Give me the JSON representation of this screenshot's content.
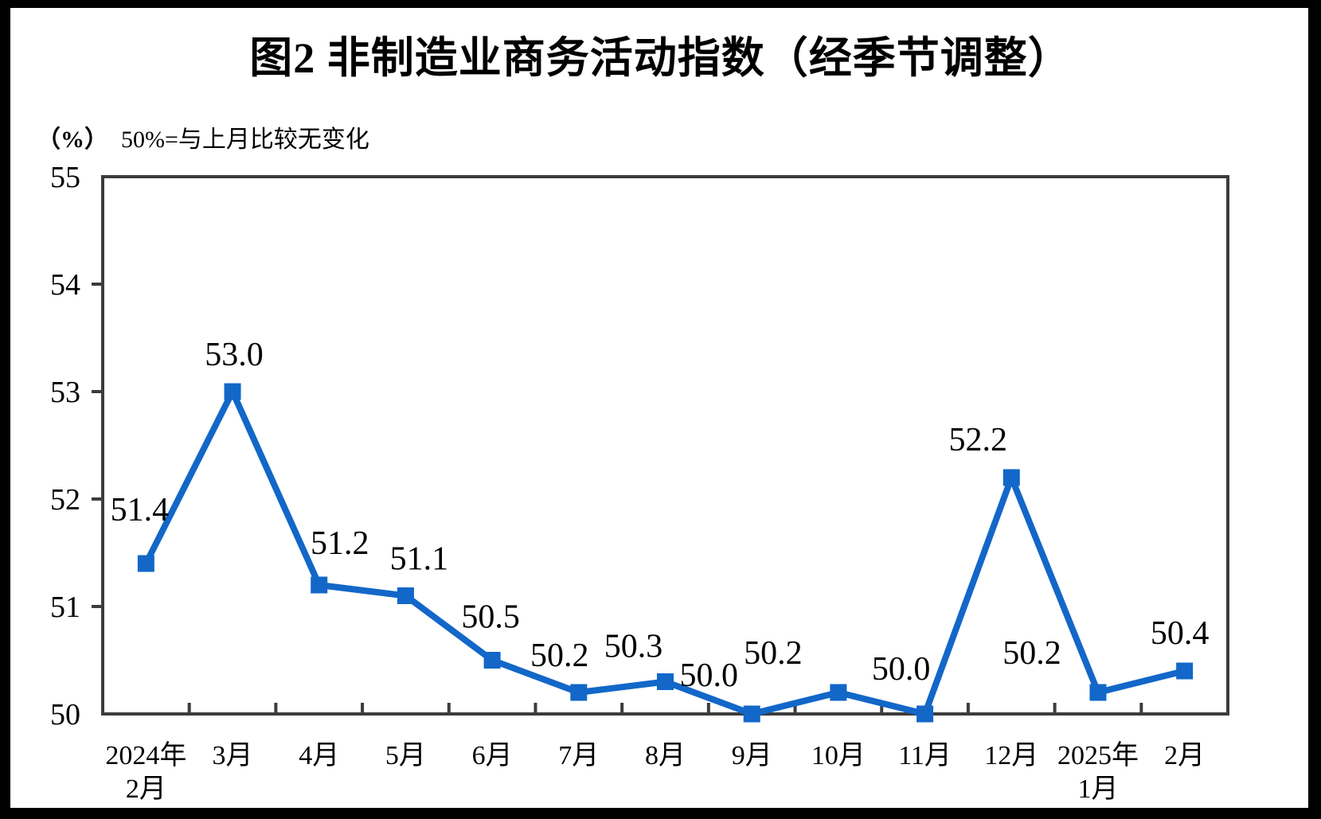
{
  "title": "图2 非制造业商务活动指数（经季节调整）",
  "unit_label": "（%）",
  "subtitle": "50%=与上月比较无变化",
  "colors": {
    "line": "#1267C8",
    "axis": "#3C3C3C",
    "text": "#000000",
    "frame": "#000000",
    "background": "#FFFFFF"
  },
  "chart_data": {
    "type": "line",
    "title": "图2 非制造业商务活动指数（经季节调整）",
    "xlabel": "",
    "ylabel": "（%） 50%=与上月比较无变化",
    "categories": [
      [
        "2024年",
        "2月"
      ],
      [
        "3月"
      ],
      [
        "4月"
      ],
      [
        "5月"
      ],
      [
        "6月"
      ],
      [
        "7月"
      ],
      [
        "8月"
      ],
      [
        "9月"
      ],
      [
        "10月"
      ],
      [
        "11月"
      ],
      [
        "12月"
      ],
      [
        "2025年",
        "1月"
      ],
      [
        "2月"
      ]
    ],
    "series": [
      {
        "name": "非制造业商务活动指数（经季节调整）",
        "values": [
          51.4,
          53.0,
          51.2,
          51.1,
          50.5,
          50.2,
          50.3,
          50.0,
          50.2,
          50.0,
          52.2,
          50.2,
          50.4
        ]
      }
    ],
    "data_labels": [
      "51.4",
      "53.0",
      "51.2",
      "51.1",
      "50.5",
      "50.2",
      "50.3",
      "50.0",
      "50.2",
      "50.0",
      "52.2",
      "50.2",
      "50.4"
    ],
    "ylim": [
      50,
      55
    ],
    "yticks": [
      50,
      51,
      52,
      53,
      54,
      55
    ],
    "ytick_labels": [
      "50",
      "51",
      "52",
      "53",
      "54",
      "55"
    ],
    "grid": false,
    "legend_position": "none",
    "line_color": "#1267C8",
    "marker": "square"
  }
}
